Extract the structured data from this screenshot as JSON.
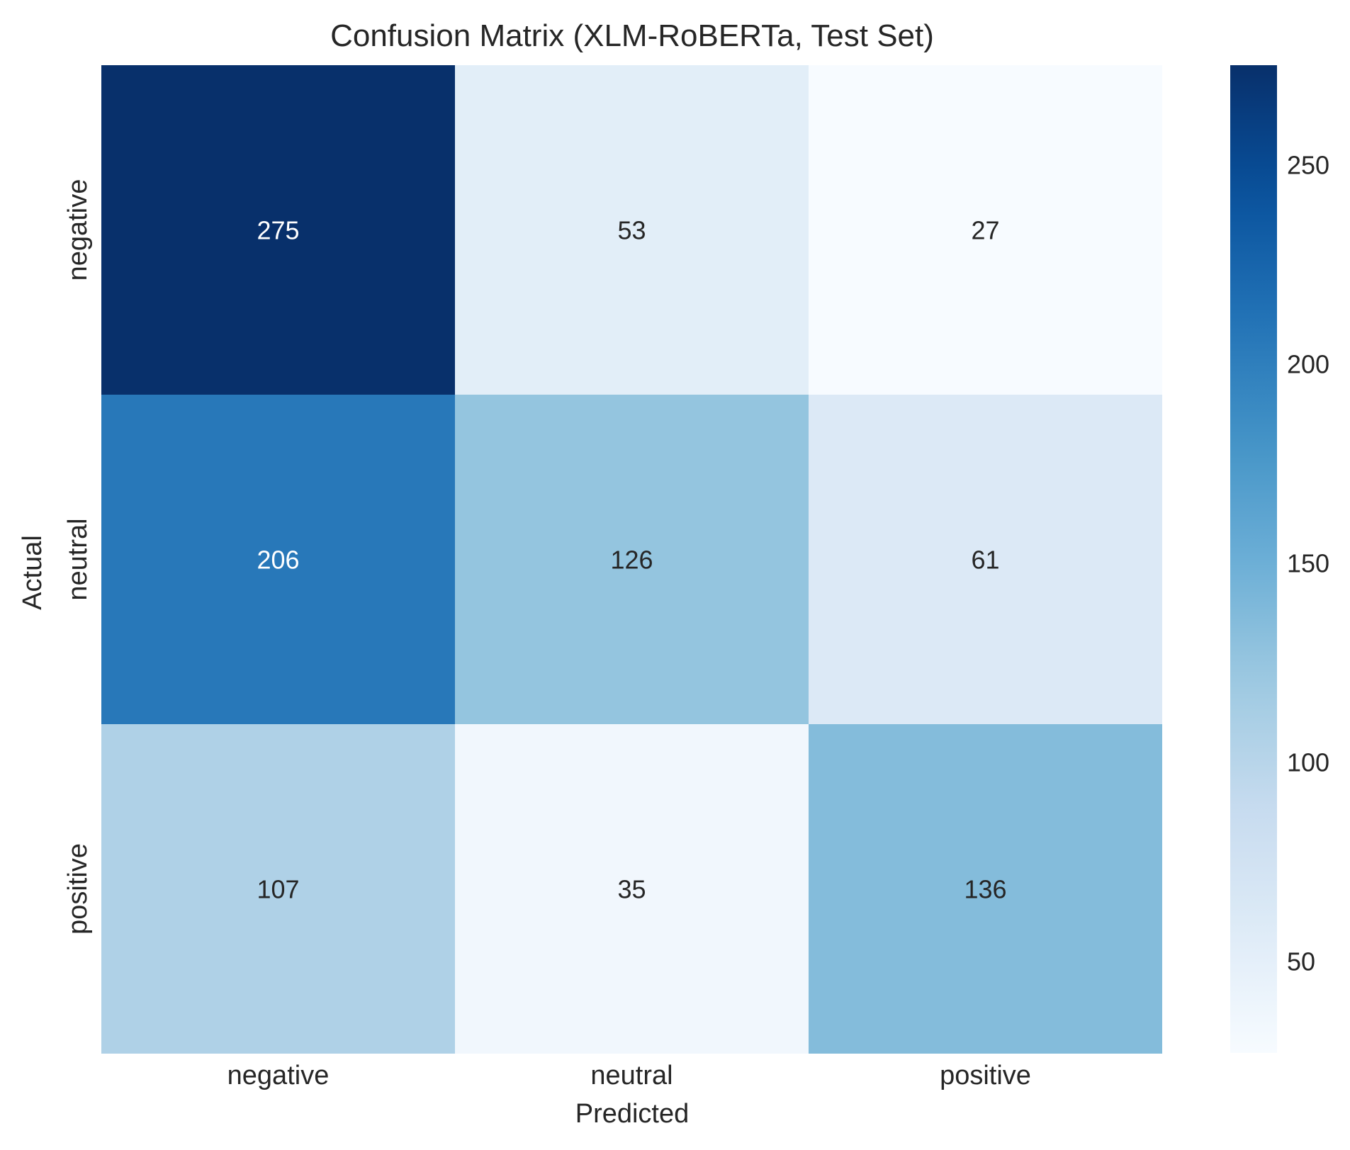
{
  "chart_data": {
    "type": "heatmap",
    "title": "Confusion Matrix (XLM-RoBERTa, Test Set)",
    "xlabel": "Predicted",
    "ylabel": "Actual",
    "x_categories": [
      "negative",
      "neutral",
      "positive"
    ],
    "y_categories": [
      "negative",
      "neutral",
      "positive"
    ],
    "values": [
      [
        275,
        53,
        27
      ],
      [
        206,
        126,
        61
      ],
      [
        107,
        35,
        136
      ]
    ],
    "colormap": "Blues",
    "colorbar": {
      "range": [
        27,
        275
      ],
      "ticks": [
        50,
        100,
        150,
        200,
        250
      ]
    },
    "grid": false
  }
}
